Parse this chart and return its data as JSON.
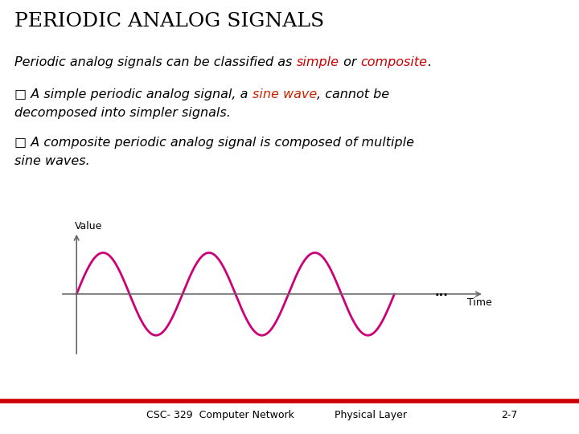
{
  "title": "PERIODIC ANALOG SIGNALS",
  "title_color": "#000000",
  "title_fontsize": 18,
  "bg_color": "#ffffff",
  "wave_color": "#cc0077",
  "axis_color": "#666666",
  "ylabel": "Value",
  "xlabel": "Time",
  "dots": "...",
  "footer_left": "CSC- 329  Computer Network",
  "footer_mid": "Physical Layer",
  "footer_right": "2-7",
  "footer_line_color": "#cc0000",
  "red_color": "#cc0000",
  "orange_red_color": "#cc2200",
  "text_black": "#000000",
  "font_size_body": 11.5,
  "font_size_footer": 9,
  "font_size_axis": 9,
  "line1_parts": [
    {
      "text": "Periodic analog signals can be classified as ",
      "color": "#000000"
    },
    {
      "text": "simple",
      "color": "#cc0000"
    },
    {
      "text": " or ",
      "color": "#000000"
    },
    {
      "text": "composite",
      "color": "#cc0000"
    },
    {
      "text": ".",
      "color": "#000000"
    }
  ],
  "bullet1_parts_line1": [
    {
      "text": "□ A simple periodic analog signal, a ",
      "color": "#000000"
    },
    {
      "text": "sine wave",
      "color": "#cc2200"
    },
    {
      "text": ", cannot be",
      "color": "#000000"
    }
  ],
  "bullet1_line2": "decomposed into simpler signals.",
  "bullet2_line1": "□ A composite periodic analog signal is composed of multiple",
  "bullet2_line2": "sine waves."
}
